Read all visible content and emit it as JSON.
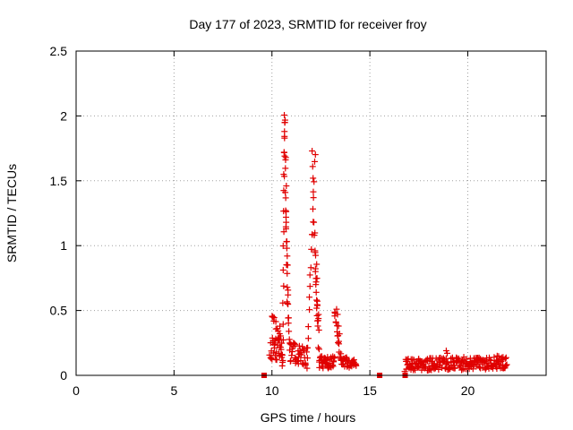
{
  "chart_data": {
    "type": "scatter",
    "title": "Day 177 of 2023, SRMTID for receiver froy",
    "xlabel": "GPS time / hours",
    "ylabel": "SRMTID / TECUs",
    "xlim": [
      0,
      24
    ],
    "ylim": [
      0,
      2.5
    ],
    "xticks": [
      0,
      5,
      10,
      15,
      20
    ],
    "xtick_labels": [
      "0",
      "5",
      "10",
      "15",
      "20"
    ],
    "yticks": [
      0,
      0.5,
      1,
      1.5,
      2,
      2.5
    ],
    "ytick_labels": [
      "0",
      "0.5",
      "1",
      "1.5",
      "2",
      "2.5"
    ],
    "grid": true,
    "series": [
      {
        "name": "SRMTID",
        "color": "#e00000",
        "marker": "plus",
        "segments": [
          {
            "x": [
              9.9,
              10.4
            ],
            "y": [
              0.2,
              0.2
            ],
            "spread": 0.1,
            "n": 25
          },
          {
            "x": [
              10.0,
              10.4
            ],
            "y": [
              0.45,
              0.32
            ],
            "spread": 0.05,
            "n": 10
          },
          {
            "x": [
              10.4,
              10.55
            ],
            "y": [
              0.3,
              0.1
            ],
            "spread": 0.08,
            "n": 12
          },
          {
            "x": [
              10.55,
              10.65
            ],
            "y": [
              0.1,
              2.0
            ],
            "spread": 0.03,
            "n": 14
          },
          {
            "x": [
              10.65,
              10.8
            ],
            "y": [
              2.0,
              0.6
            ],
            "spread": 0.15,
            "n": 20
          },
          {
            "x": [
              10.8,
              10.9
            ],
            "y": [
              0.6,
              0.2
            ],
            "spread": 0.06,
            "n": 8
          },
          {
            "x": [
              10.9,
              11.8
            ],
            "y": [
              0.18,
              0.14
            ],
            "spread": 0.08,
            "n": 40
          },
          {
            "x": [
              11.8,
              12.2
            ],
            "y": [
              0.1,
              1.7
            ],
            "spread": 0.05,
            "n": 18
          },
          {
            "x": [
              12.2,
              12.4
            ],
            "y": [
              1.0,
              0.25
            ],
            "spread": 0.1,
            "n": 18
          },
          {
            "x": [
              12.4,
              13.2
            ],
            "y": [
              0.1,
              0.1
            ],
            "spread": 0.05,
            "n": 40
          },
          {
            "x": [
              13.2,
              13.5
            ],
            "y": [
              0.5,
              0.15
            ],
            "spread": 0.05,
            "n": 15
          },
          {
            "x": [
              13.5,
              14.3
            ],
            "y": [
              0.1,
              0.1
            ],
            "spread": 0.04,
            "n": 35
          },
          {
            "x": [
              16.8,
              22.0
            ],
            "y": [
              0.08,
              0.1
            ],
            "spread": 0.05,
            "n": 220
          }
        ],
        "points": [
          [
            10.05,
            0.45
          ],
          [
            10.6,
            1.55
          ],
          [
            10.62,
            1.72
          ],
          [
            10.64,
            1.88
          ],
          [
            10.66,
            1.95
          ],
          [
            10.68,
            1.41
          ],
          [
            10.7,
            1.27
          ],
          [
            10.72,
            1.13
          ],
          [
            10.74,
            1.03
          ],
          [
            10.76,
            0.98
          ],
          [
            10.78,
            0.92
          ],
          [
            10.8,
            0.85
          ],
          [
            10.82,
            0.62
          ],
          [
            12.05,
            1.73
          ],
          [
            12.08,
            1.61
          ],
          [
            12.1,
            1.52
          ],
          [
            12.12,
            1.37
          ],
          [
            12.14,
            1.18
          ],
          [
            12.16,
            1.08
          ],
          [
            12.2,
            0.96
          ],
          [
            12.22,
            0.8
          ],
          [
            12.24,
            0.7
          ],
          [
            12.26,
            0.64
          ],
          [
            12.28,
            0.58
          ],
          [
            12.3,
            0.46
          ],
          [
            12.32,
            0.42
          ],
          [
            12.34,
            0.38
          ],
          [
            13.3,
            0.51
          ],
          [
            13.35,
            0.47
          ],
          [
            13.4,
            0.38
          ],
          [
            13.45,
            0.32
          ],
          [
            18.9,
            0.19
          ],
          [
            18.95,
            0.17
          ],
          [
            21.5,
            0.15
          ],
          [
            21.8,
            0.14
          ]
        ]
      },
      {
        "name": "gaps",
        "color": "#e00000",
        "marker": "square",
        "points": [
          [
            9.6,
            0.0
          ],
          [
            15.5,
            0.0
          ],
          [
            16.8,
            0.0
          ]
        ]
      }
    ]
  }
}
